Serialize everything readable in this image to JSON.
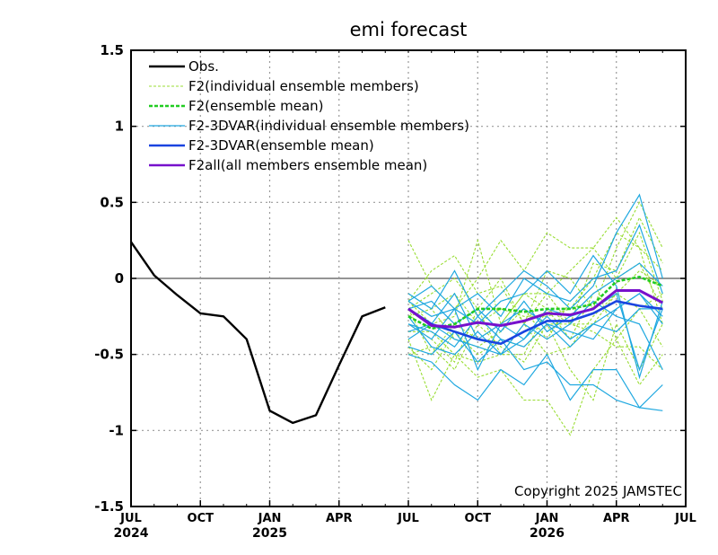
{
  "chart_data": {
    "type": "line",
    "title": "emi forecast",
    "xlabel": "",
    "ylabel": "",
    "ylim": [
      -1.5,
      1.5
    ],
    "xlim": [
      "2024-07",
      "2026-07"
    ],
    "yticks": [
      "1.5",
      "1",
      "0.5",
      "0",
      "-0.5",
      "-1",
      "-1.5"
    ],
    "yticks_values": [
      1.5,
      1,
      0.5,
      0,
      -0.5,
      -1,
      -1.5
    ],
    "xticks": [
      {
        "x": "2024-07",
        "label": "JUL",
        "year": "2024"
      },
      {
        "x": "2024-10",
        "label": "OCT",
        "year": ""
      },
      {
        "x": "2025-01",
        "label": "JAN",
        "year": "2025"
      },
      {
        "x": "2025-04",
        "label": "APR",
        "year": ""
      },
      {
        "x": "2025-07",
        "label": "JUL",
        "year": ""
      },
      {
        "x": "2025-10",
        "label": "OCT",
        "year": ""
      },
      {
        "x": "2026-01",
        "label": "JAN",
        "year": "2026"
      },
      {
        "x": "2026-04",
        "label": "APR",
        "year": ""
      },
      {
        "x": "2026-07",
        "label": "JUL",
        "year": ""
      }
    ],
    "grid": true,
    "zero_line": true,
    "legend_position": "top-left",
    "legend": [
      {
        "label": "Obs.",
        "color": "#000000",
        "style": "solid-thick"
      },
      {
        "label": "F2(individual ensemble members)",
        "color": "#99dd33",
        "style": "dashed-thin"
      },
      {
        "label": "F2(ensemble mean)",
        "color": "#22cc22",
        "style": "dashed-thick"
      },
      {
        "label": "F2-3DVAR(individual ensemble members)",
        "color": "#1fa8e0",
        "style": "solid-thin"
      },
      {
        "label": "F2-3DVAR(ensemble mean)",
        "color": "#1a44e0",
        "style": "solid-thick"
      },
      {
        "label": "F2all(all members ensemble mean)",
        "color": "#7711cc",
        "style": "solid-thick"
      }
    ],
    "copyright": "Copyright 2025 JAMSTEC",
    "observed": {
      "name": "Obs.",
      "color": "#000000",
      "x": [
        "2024-07",
        "2024-08",
        "2024-09",
        "2024-10",
        "2024-11",
        "2024-12",
        "2025-01",
        "2025-02",
        "2025-03",
        "2025-04",
        "2025-05",
        "2025-06"
      ],
      "values": [
        0.24,
        0.02,
        -0.11,
        -0.23,
        -0.25,
        -0.4,
        -0.87,
        -0.95,
        -0.9,
        -0.57,
        -0.25,
        -0.19
      ]
    },
    "forecast_months": [
      "2025-07",
      "2025-08",
      "2025-09",
      "2025-10",
      "2025-11",
      "2025-12",
      "2026-01",
      "2026-02",
      "2026-03",
      "2026-04",
      "2026-05",
      "2026-06"
    ],
    "f2_members": {
      "name": "F2(individual ensemble members)",
      "color": "#99dd33",
      "members": [
        [
          0.25,
          -0.05,
          -0.2,
          0.0,
          0.25,
          0.05,
          0.3,
          0.2,
          0.2,
          0.4,
          0.2,
          0.05
        ],
        [
          -0.15,
          0.05,
          0.15,
          -0.1,
          -0.05,
          -0.3,
          -0.1,
          -0.3,
          0.1,
          0.05,
          0.4,
          0.1
        ],
        [
          -0.2,
          -0.5,
          -0.3,
          -0.4,
          -0.3,
          -0.1,
          -0.1,
          0.05,
          0.2,
          0.0,
          0.3,
          -0.15
        ],
        [
          -0.3,
          -0.4,
          -0.55,
          -0.2,
          -0.5,
          -0.5,
          -0.2,
          -0.3,
          -0.3,
          -0.1,
          -0.2,
          -0.45
        ],
        [
          -0.4,
          -0.8,
          -0.5,
          -0.65,
          -0.6,
          -0.8,
          -0.8,
          -1.03,
          -0.6,
          -0.4,
          -0.7,
          -0.5
        ],
        [
          -0.15,
          -0.3,
          -0.25,
          0.25,
          -0.3,
          -0.1,
          -0.2,
          -0.4,
          -0.1,
          0.0,
          0.1,
          -0.2
        ],
        [
          -0.5,
          -0.45,
          -0.6,
          -0.3,
          -0.45,
          -0.55,
          -0.3,
          -0.6,
          -0.8,
          -0.3,
          -0.6,
          -0.3
        ],
        [
          -0.2,
          -0.1,
          0.0,
          -0.2,
          0.0,
          -0.3,
          0.05,
          0.0,
          -0.2,
          0.2,
          0.5,
          0.2
        ],
        [
          -0.25,
          -0.2,
          -0.4,
          -0.45,
          -0.35,
          -0.2,
          -0.4,
          -0.15,
          0.0,
          -0.4,
          -0.2,
          -0.1
        ],
        [
          -0.35,
          -0.35,
          -0.5,
          -0.55,
          -0.5,
          -0.3,
          -0.5,
          -0.45,
          -0.25,
          -0.1,
          0.05,
          -0.05
        ],
        [
          -0.1,
          -0.2,
          -0.1,
          -0.3,
          -0.2,
          -0.25,
          -0.25,
          -0.2,
          0.0,
          0.3,
          0.2,
          -0.3
        ],
        [
          -0.45,
          -0.6,
          -0.35,
          -0.5,
          -0.4,
          -0.45,
          -0.3,
          -0.3,
          -0.35,
          -0.45,
          -0.45,
          -0.6
        ]
      ]
    },
    "f2_mean": {
      "name": "F2(ensemble mean)",
      "color": "#22cc22",
      "values": [
        -0.25,
        -0.33,
        -0.3,
        -0.2,
        -0.2,
        -0.22,
        -0.2,
        -0.2,
        -0.17,
        -0.02,
        0.01,
        -0.05
      ]
    },
    "f2_3dvar_members": {
      "name": "F2-3DVAR(individual ensemble members)",
      "color": "#1fa8e0",
      "members": [
        [
          -0.1,
          -0.2,
          0.05,
          -0.25,
          -0.1,
          0.05,
          -0.05,
          -0.2,
          -0.05,
          0.3,
          0.55,
          0.0
        ],
        [
          -0.3,
          -0.4,
          -0.2,
          -0.6,
          -0.3,
          -0.2,
          -0.3,
          -0.35,
          -0.4,
          -0.2,
          -0.1,
          -0.3
        ],
        [
          -0.5,
          -0.55,
          -0.7,
          -0.8,
          -0.6,
          -0.7,
          -0.5,
          -0.8,
          -0.6,
          -0.6,
          -0.85,
          -0.7
        ],
        [
          -0.15,
          -0.05,
          -0.2,
          -0.1,
          -0.25,
          0.0,
          -0.1,
          -0.15,
          0.0,
          0.05,
          0.35,
          -0.1
        ],
        [
          -0.4,
          -0.3,
          -0.4,
          -0.45,
          -0.5,
          -0.4,
          -0.25,
          -0.4,
          -0.3,
          -0.35,
          -0.2,
          -0.2
        ],
        [
          -0.45,
          -0.5,
          -0.35,
          -0.55,
          -0.4,
          -0.6,
          -0.55,
          -0.7,
          -0.7,
          -0.8,
          -0.85,
          -0.87
        ],
        [
          -0.2,
          -0.15,
          -0.3,
          -0.2,
          -0.35,
          -0.15,
          -0.35,
          -0.25,
          -0.2,
          -0.1,
          -0.6,
          -0.2
        ],
        [
          -0.35,
          -0.3,
          -0.1,
          -0.4,
          -0.3,
          -0.4,
          -0.2,
          -0.25,
          -0.1,
          0.0,
          0.1,
          -0.05
        ],
        [
          -0.25,
          -0.45,
          -0.5,
          -0.35,
          -0.5,
          -0.3,
          -0.4,
          -0.3,
          -0.15,
          -0.25,
          -0.3,
          -0.6
        ],
        [
          -0.15,
          -0.25,
          -0.2,
          -0.3,
          -0.15,
          -0.1,
          0.05,
          -0.1,
          0.15,
          -0.05,
          -0.65,
          -0.15
        ],
        [
          -0.3,
          -0.35,
          -0.45,
          -0.25,
          -0.4,
          -0.45,
          -0.3,
          -0.45,
          -0.3,
          -0.2,
          -0.1,
          -0.25
        ]
      ]
    },
    "f2_3dvar_mean": {
      "name": "F2-3DVAR(ensemble mean)",
      "color": "#1a44e0",
      "values": [
        -0.2,
        -0.3,
        -0.35,
        -0.4,
        -0.43,
        -0.35,
        -0.28,
        -0.28,
        -0.23,
        -0.15,
        -0.18,
        -0.2
      ]
    },
    "f2all_mean": {
      "name": "F2all(all members ensemble mean)",
      "color": "#7711cc",
      "values": [
        -0.2,
        -0.31,
        -0.32,
        -0.29,
        -0.31,
        -0.28,
        -0.23,
        -0.24,
        -0.2,
        -0.08,
        -0.08,
        -0.16
      ]
    }
  }
}
